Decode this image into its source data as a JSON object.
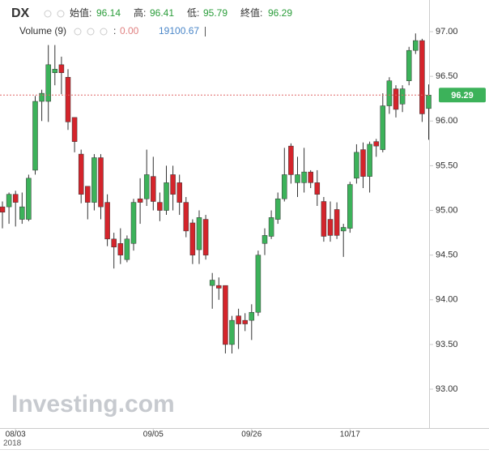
{
  "chart_data": {
    "type": "candlestick",
    "title": "DX",
    "ohlc_labels": [
      "始值:",
      "高:",
      "低:",
      "終值:"
    ],
    "volume_label": "Volume (9)",
    "separator": ":",
    "volume_values": [
      {
        "value": 0,
        "label": "0.00"
      },
      19100.67
    ],
    "watermark": "Investing.com",
    "x_year": "2018",
    "categories": [
      null,
      null,
      "08/03",
      null,
      null,
      null,
      null,
      null,
      null,
      null,
      null,
      null,
      null,
      null,
      null,
      null,
      null,
      null,
      null,
      null,
      null,
      null,
      null,
      "09/05",
      null,
      null,
      null,
      null,
      null,
      null,
      null,
      null,
      null,
      null,
      null,
      null,
      null,
      null,
      "09/26",
      null,
      null,
      null,
      null,
      null,
      null,
      null,
      null,
      null,
      null,
      null,
      null,
      null,
      null,
      "10/17",
      null,
      null,
      null,
      null,
      null,
      null,
      null,
      null,
      null,
      null,
      null,
      null
    ],
    "open": [
      95.04,
      95.04,
      95.18,
      94.9,
      94.9,
      95.45,
      96.22,
      96.22,
      96.54,
      96.63,
      96.49,
      96.04,
      95.63,
      95.27,
      95.09,
      95.59,
      95.09,
      94.68,
      94.63,
      94.45,
      94.63,
      95.13,
      95.13,
      95.38,
      95.09,
      95.0,
      95.4,
      95.31,
      95.09,
      94.86,
      94.56,
      94.9,
      94.16,
      94.16,
      94.16,
      93.5,
      93.82,
      93.77,
      93.77,
      93.86,
      94.63,
      94.71,
      94.9,
      95.13,
      95.72,
      95.31,
      95.31,
      95.43,
      95.31,
      95.1,
      94.9,
      95.01,
      94.77,
      94.8,
      95.36,
      95.68,
      95.38,
      95.77,
      95.68,
      96.17,
      96.36,
      96.19,
      96.45,
      96.79,
      96.9,
      96.14
    ],
    "high": [
      95.1,
      95.2,
      95.22,
      95.2,
      95.4,
      96.28,
      96.35,
      96.85,
      96.85,
      96.72,
      96.58,
      96.04,
      95.68,
      95.27,
      95.63,
      95.63,
      95.18,
      94.75,
      94.8,
      94.72,
      95.13,
      95.36,
      95.68,
      95.6,
      95.2,
      95.5,
      95.5,
      95.4,
      95.15,
      94.9,
      95.0,
      94.95,
      94.3,
      94.25,
      94.16,
      93.82,
      93.9,
      93.85,
      93.95,
      94.55,
      94.8,
      95.0,
      95.2,
      95.7,
      95.75,
      95.6,
      95.7,
      95.45,
      95.45,
      95.15,
      95.1,
      95.09,
      94.85,
      95.32,
      95.74,
      95.76,
      95.77,
      95.8,
      96.31,
      96.49,
      96.4,
      96.4,
      96.83,
      96.98,
      96.92,
      96.41
    ],
    "low": [
      94.8,
      94.85,
      94.82,
      94.85,
      94.88,
      95.4,
      96.0,
      95.99,
      96.4,
      96.3,
      95.9,
      95.65,
      95.08,
      94.9,
      95.0,
      94.9,
      94.6,
      94.35,
      94.4,
      94.42,
      94.55,
      94.85,
      95.05,
      95.0,
      94.88,
      94.95,
      95.0,
      94.95,
      94.7,
      94.4,
      94.4,
      94.45,
      93.9,
      94.0,
      93.4,
      93.4,
      93.45,
      93.65,
      93.55,
      93.82,
      94.5,
      94.68,
      94.85,
      95.1,
      95.3,
      95.15,
      95.2,
      95.25,
      95.05,
      94.65,
      94.65,
      94.68,
      94.48,
      94.75,
      95.3,
      95.25,
      95.2,
      95.6,
      95.65,
      96.08,
      96.04,
      96.1,
      96.4,
      96.75,
      95.99,
      95.79
    ],
    "close": [
      94.98,
      95.18,
      95.09,
      95.04,
      95.36,
      96.22,
      96.31,
      96.63,
      96.58,
      96.54,
      95.99,
      95.77,
      95.18,
      95.09,
      95.59,
      95.04,
      94.68,
      94.59,
      94.5,
      94.68,
      95.09,
      95.09,
      95.4,
      95.1,
      95.0,
      95.31,
      95.18,
      95.09,
      94.77,
      94.5,
      94.92,
      94.5,
      94.22,
      94.13,
      93.5,
      93.77,
      93.73,
      93.73,
      93.86,
      94.5,
      94.72,
      94.92,
      95.13,
      95.4,
      95.4,
      95.4,
      95.43,
      95.31,
      95.18,
      94.71,
      94.72,
      94.72,
      94.81,
      95.29,
      95.65,
      95.38,
      95.74,
      95.72,
      96.17,
      96.45,
      96.13,
      96.36,
      96.79,
      96.9,
      96.08,
      96.29
    ],
    "up_color": "#3cb25a",
    "down_color": "#d4242b",
    "ylim": [
      92.565,
      97.354
    ],
    "yticks": [
      {
        "value": 93,
        "label": "93.00"
      },
      {
        "value": 93.5,
        "label": "93.50"
      },
      {
        "value": 94,
        "label": "94.00"
      },
      {
        "value": 94.5,
        "label": "94.50"
      },
      {
        "value": 95,
        "label": "95.00"
      },
      {
        "value": 95.5,
        "label": "95.50"
      },
      {
        "value": 96,
        "label": "96.00"
      },
      {
        "value": 96.5,
        "label": "96.50"
      },
      {
        "value": 97,
        "label": "97.00"
      }
    ],
    "grid": false
  }
}
